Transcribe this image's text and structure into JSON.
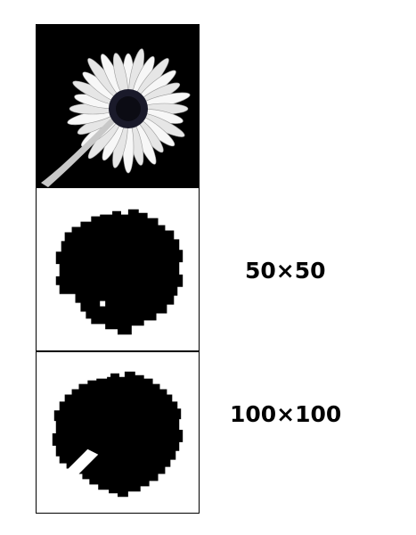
{
  "panels": {
    "photo": {
      "subject": "daisy-photo"
    },
    "mask_small": {
      "resolution_label": "50×50"
    },
    "mask_large": {
      "resolution_label": "100×100"
    }
  },
  "colors": {
    "background": "#ffffff",
    "mask": "#000000",
    "petal": "#f2f2f2",
    "center": "#1a1a2a"
  }
}
